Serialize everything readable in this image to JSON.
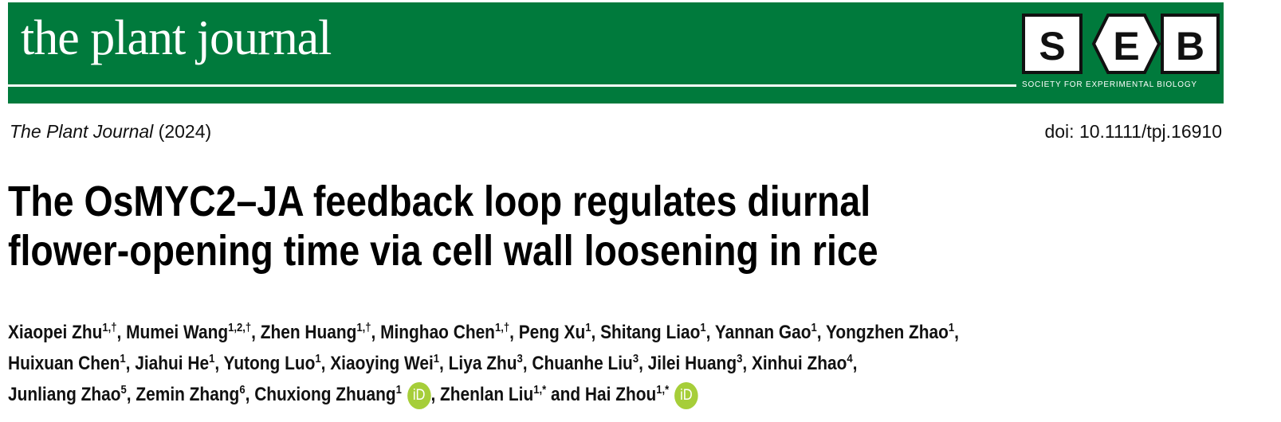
{
  "banner": {
    "journal_name": "the plant journal",
    "logo_letters": [
      "S",
      "E",
      "B"
    ],
    "society_name": "SOCIETY FOR EXPERIMENTAL BIOLOGY"
  },
  "citation": {
    "journal": "The Plant Journal",
    "year": "(2024)",
    "doi": "doi: 10.1111/tpj.16910"
  },
  "title": {
    "lines": [
      "The OsMYC2–JA feedback loop regulates diurnal",
      "flower-opening time via cell wall loosening in rice"
    ]
  },
  "authors": {
    "lines": [
      [
        {
          "name": "Xiaopei Zhu",
          "sup": "1,†",
          "sep": ", "
        },
        {
          "name": "Mumei Wang",
          "sup": "1,2,†",
          "sep": ", "
        },
        {
          "name": "Zhen Huang",
          "sup": "1,†",
          "sep": ", "
        },
        {
          "name": "Minghao Chen",
          "sup": "1,†",
          "sep": ", "
        },
        {
          "name": "Peng Xu",
          "sup": "1",
          "sep": ", "
        },
        {
          "name": "Shitang Liao",
          "sup": "1",
          "sep": ", "
        },
        {
          "name": "Yannan Gao",
          "sup": "1",
          "sep": ", "
        },
        {
          "name": "Yongzhen Zhao",
          "sup": "1",
          "sep": ","
        }
      ],
      [
        {
          "name": "Huixuan Chen",
          "sup": "1",
          "sep": ", "
        },
        {
          "name": "Jiahui He",
          "sup": "1",
          "sep": ", "
        },
        {
          "name": "Yutong Luo",
          "sup": "1",
          "sep": ", "
        },
        {
          "name": "Xiaoying Wei",
          "sup": "1",
          "sep": ", "
        },
        {
          "name": "Liya Zhu",
          "sup": "3",
          "sep": ", "
        },
        {
          "name": "Chuanhe Liu",
          "sup": "3",
          "sep": ", "
        },
        {
          "name": "Jilei Huang",
          "sup": "3",
          "sep": ", "
        },
        {
          "name": "Xinhui Zhao",
          "sup": "4",
          "sep": ","
        }
      ],
      [
        {
          "name": "Junliang Zhao",
          "sup": "5",
          "sep": ", "
        },
        {
          "name": "Zemin Zhang",
          "sup": "6",
          "sep": ", "
        },
        {
          "name": "Chuxiong Zhuang",
          "sup": "1",
          "orcid": "iD",
          "sep": ", "
        },
        {
          "name": "Zhenlan Liu",
          "sup": "1,*",
          "sep": " and "
        },
        {
          "name": "Hai Zhou",
          "sup": "1,*",
          "orcid": "iD"
        }
      ]
    ]
  }
}
